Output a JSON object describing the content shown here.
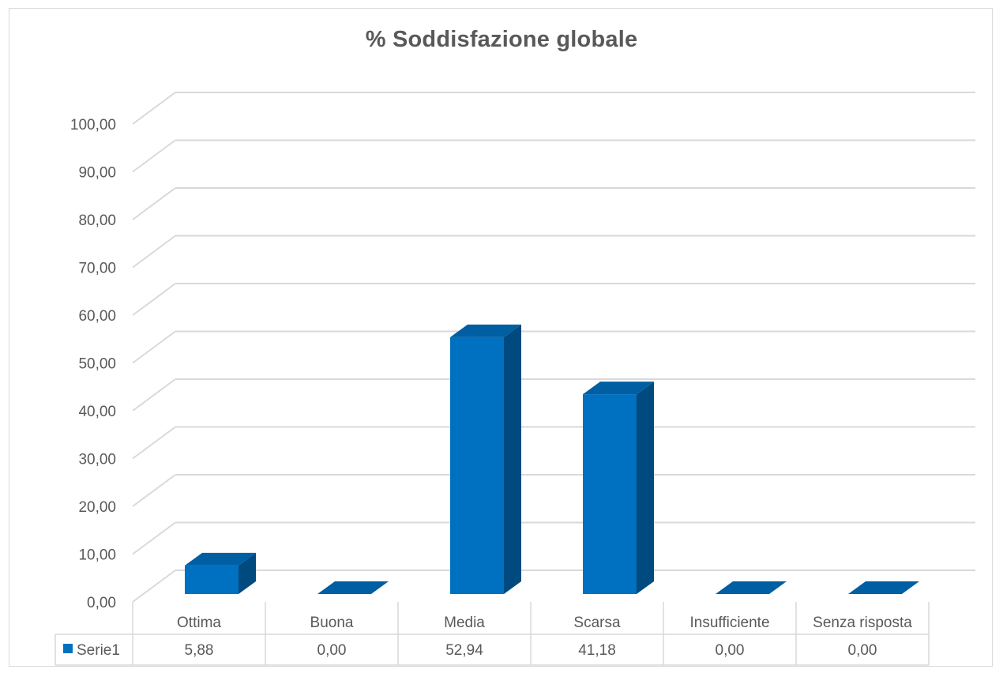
{
  "chart_data": {
    "type": "bar",
    "title": "% Soddisfazione globale",
    "categories": [
      "Ottima",
      "Buona",
      "Media",
      "Scarsa",
      "Insufficiente",
      "Senza risposta"
    ],
    "series": [
      {
        "name": "Serie1",
        "values": [
          5.88,
          0.0,
          52.94,
          41.18,
          0.0,
          0.0
        ]
      }
    ],
    "value_labels": [
      "5,88",
      "0,00",
      "52,94",
      "41,18",
      "0,00",
      "0,00"
    ],
    "yticks": [
      "0,00",
      "10,00",
      "20,00",
      "30,00",
      "40,00",
      "50,00",
      "60,00",
      "70,00",
      "80,00",
      "90,00",
      "100,00"
    ],
    "ylim": [
      0,
      100
    ],
    "xlabel": "",
    "ylabel": "",
    "grid": true,
    "legend": "data-table",
    "bar_style": "3d-column",
    "colors": {
      "bar_front": "#0070c0",
      "bar_side": "#004a7f",
      "bar_top": "#005ea3",
      "gridline": "#d9d9d9",
      "text": "#595959"
    }
  }
}
